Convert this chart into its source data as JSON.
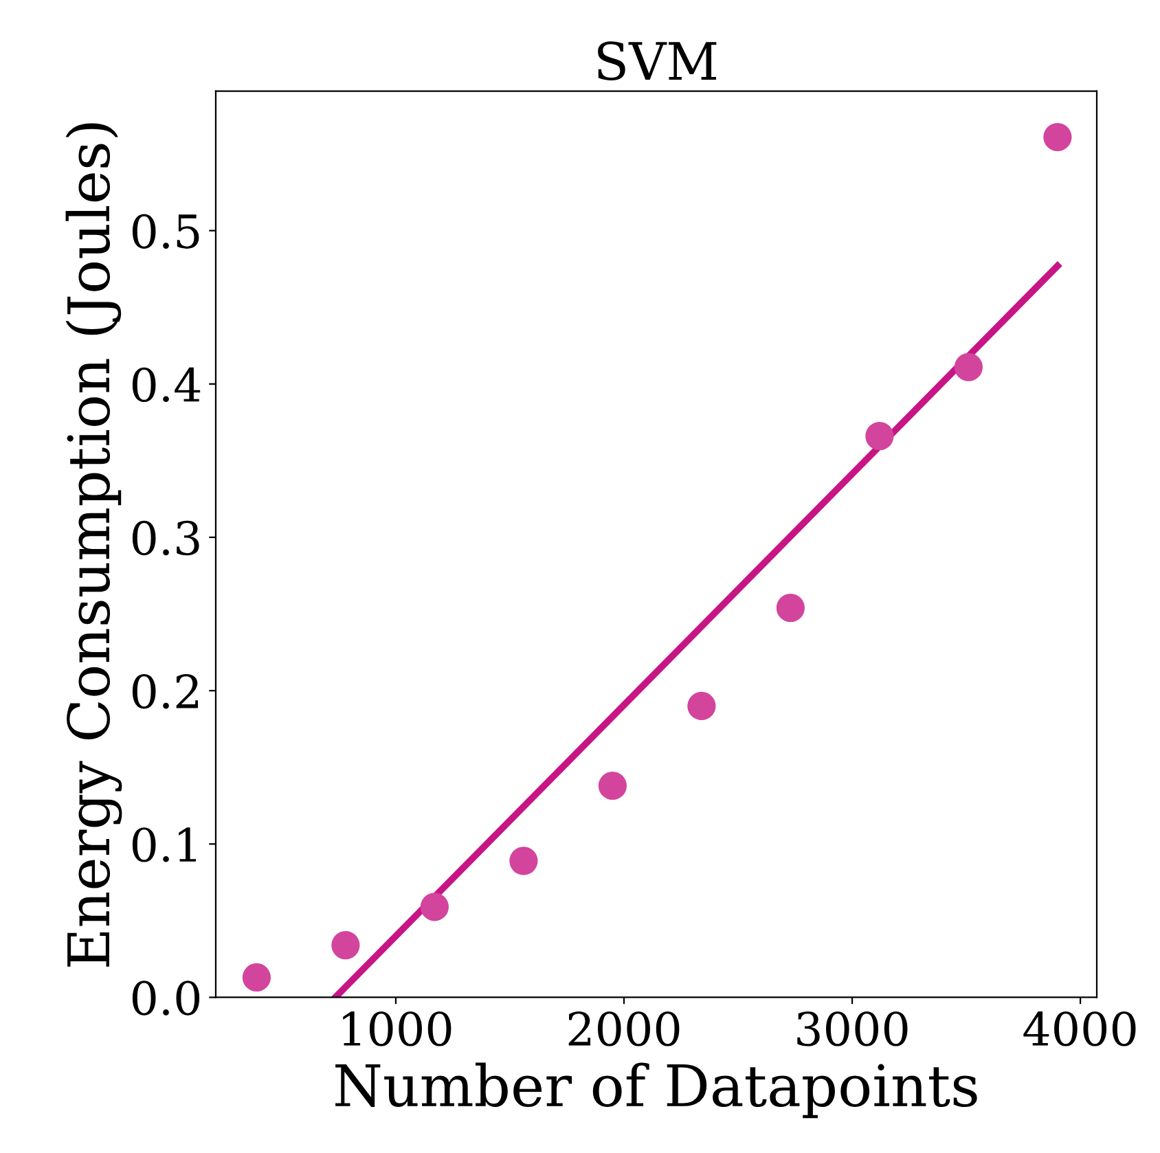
{
  "chart_data": {
    "type": "scatter",
    "title": "SVM",
    "xlabel": "Number of Datapoints",
    "ylabel": "Energy Consumption (Joules)",
    "series": [
      {
        "color": "#d3449d",
        "marker": "circle",
        "x": [
          390,
          780,
          1170,
          1560,
          1950,
          2340,
          2730,
          3120,
          3510,
          3900
        ],
        "values": [
          0.013,
          0.034,
          0.059,
          0.089,
          0.138,
          0.19,
          0.254,
          0.366,
          0.411,
          0.561
        ]
      },
      {
        "type": "line",
        "color": "#c71585",
        "x": [
          735,
          3900
        ],
        "values": [
          0,
          0.477
        ]
      }
    ],
    "xlim": [
      211,
      4072
    ],
    "ylim": [
      0,
      0.591
    ],
    "xticks": [
      1000,
      2000,
      3000,
      4000
    ],
    "yticks": [
      {
        "value": 0,
        "label": "0.0"
      },
      0.1,
      0.2,
      0.3,
      0.4,
      0.5
    ],
    "grid": false,
    "line_style": "solid"
  }
}
